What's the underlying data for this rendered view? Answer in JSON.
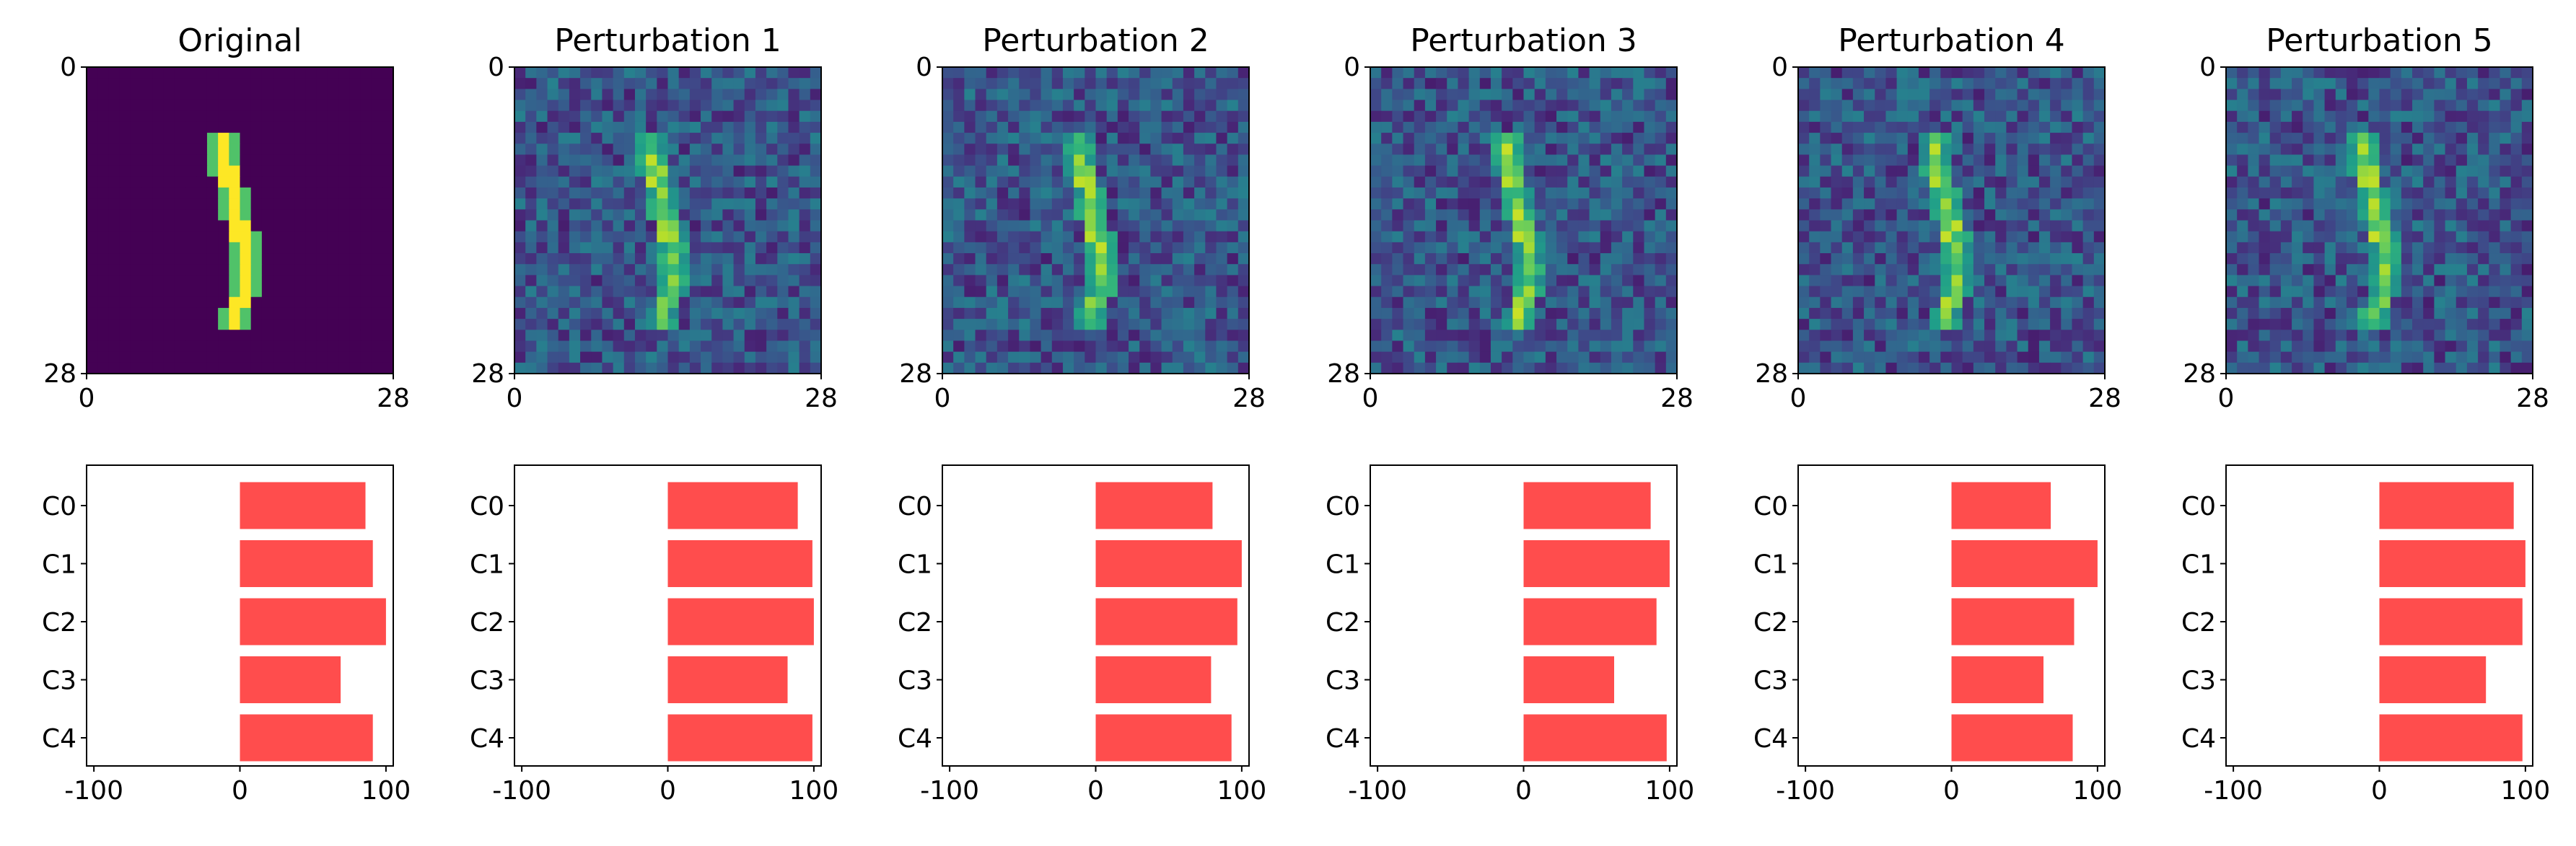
{
  "chart_data": [
    {
      "type": "heatmap",
      "title": "Original",
      "colormap": "viridis",
      "xlim": [
        0,
        28
      ],
      "ylim": [
        28,
        0
      ],
      "xticks": [
        "0",
        "28"
      ],
      "yticks": [
        "0",
        "28"
      ],
      "digit": "1",
      "noise": false,
      "peak": 1.0
    },
    {
      "type": "heatmap",
      "title": "Perturbation 1",
      "colormap": "viridis",
      "xlim": [
        0,
        28
      ],
      "ylim": [
        28,
        0
      ],
      "xticks": [
        "0",
        "28"
      ],
      "yticks": [
        "0",
        "28"
      ],
      "digit": "1",
      "noise": true,
      "peak": 0.8
    },
    {
      "type": "heatmap",
      "title": "Perturbation 2",
      "colormap": "viridis",
      "xlim": [
        0,
        28
      ],
      "ylim": [
        28,
        0
      ],
      "xticks": [
        "0",
        "28"
      ],
      "yticks": [
        "0",
        "28"
      ],
      "digit": "1",
      "noise": true,
      "peak": 0.8
    },
    {
      "type": "heatmap",
      "title": "Perturbation 3",
      "colormap": "viridis",
      "xlim": [
        0,
        28
      ],
      "ylim": [
        28,
        0
      ],
      "xticks": [
        "0",
        "28"
      ],
      "yticks": [
        "0",
        "28"
      ],
      "digit": "1",
      "noise": true,
      "peak": 0.8
    },
    {
      "type": "heatmap",
      "title": "Perturbation 4",
      "colormap": "viridis",
      "xlim": [
        0,
        28
      ],
      "ylim": [
        28,
        0
      ],
      "xticks": [
        "0",
        "28"
      ],
      "yticks": [
        "0",
        "28"
      ],
      "digit": "1",
      "noise": true,
      "peak": 0.8
    },
    {
      "type": "heatmap",
      "title": "Perturbation 5",
      "colormap": "viridis",
      "xlim": [
        0,
        28
      ],
      "ylim": [
        28,
        0
      ],
      "xticks": [
        "0",
        "28"
      ],
      "yticks": [
        "0",
        "28"
      ],
      "digit": "1",
      "noise": true,
      "peak": 0.8
    },
    {
      "type": "bar",
      "orientation": "horizontal",
      "title": "",
      "categories": [
        "C0",
        "C1",
        "C2",
        "C3",
        "C4"
      ],
      "values": [
        86,
        91,
        100,
        69,
        91
      ],
      "xlim": [
        -105,
        105
      ],
      "xticks": [
        "-100",
        "0",
        "100"
      ],
      "color": "#ff4d4d"
    },
    {
      "type": "bar",
      "orientation": "horizontal",
      "title": "",
      "categories": [
        "C0",
        "C1",
        "C2",
        "C3",
        "C4"
      ],
      "values": [
        89,
        99,
        100,
        82,
        99
      ],
      "xlim": [
        -105,
        105
      ],
      "xticks": [
        "-100",
        "0",
        "100"
      ],
      "color": "#ff4d4d"
    },
    {
      "type": "bar",
      "orientation": "horizontal",
      "title": "",
      "categories": [
        "C0",
        "C1",
        "C2",
        "C3",
        "C4"
      ],
      "values": [
        80,
        100,
        97,
        79,
        93
      ],
      "xlim": [
        -105,
        105
      ],
      "xticks": [
        "-100",
        "0",
        "100"
      ],
      "color": "#ff4d4d"
    },
    {
      "type": "bar",
      "orientation": "horizontal",
      "title": "",
      "categories": [
        "C0",
        "C1",
        "C2",
        "C3",
        "C4"
      ],
      "values": [
        87,
        100,
        91,
        62,
        98
      ],
      "xlim": [
        -105,
        105
      ],
      "xticks": [
        "-100",
        "0",
        "100"
      ],
      "color": "#ff4d4d"
    },
    {
      "type": "bar",
      "orientation": "horizontal",
      "title": "",
      "categories": [
        "C0",
        "C1",
        "C2",
        "C3",
        "C4"
      ],
      "values": [
        68,
        100,
        84,
        63,
        83
      ],
      "xlim": [
        -105,
        105
      ],
      "xticks": [
        "-100",
        "0",
        "100"
      ],
      "color": "#ff4d4d"
    },
    {
      "type": "bar",
      "orientation": "horizontal",
      "title": "",
      "categories": [
        "C0",
        "C1",
        "C2",
        "C3",
        "C4"
      ],
      "values": [
        92,
        100,
        98,
        73,
        98
      ],
      "xlim": [
        -105,
        105
      ],
      "xticks": [
        "-100",
        "0",
        "100"
      ],
      "color": "#ff4d4d"
    }
  ]
}
